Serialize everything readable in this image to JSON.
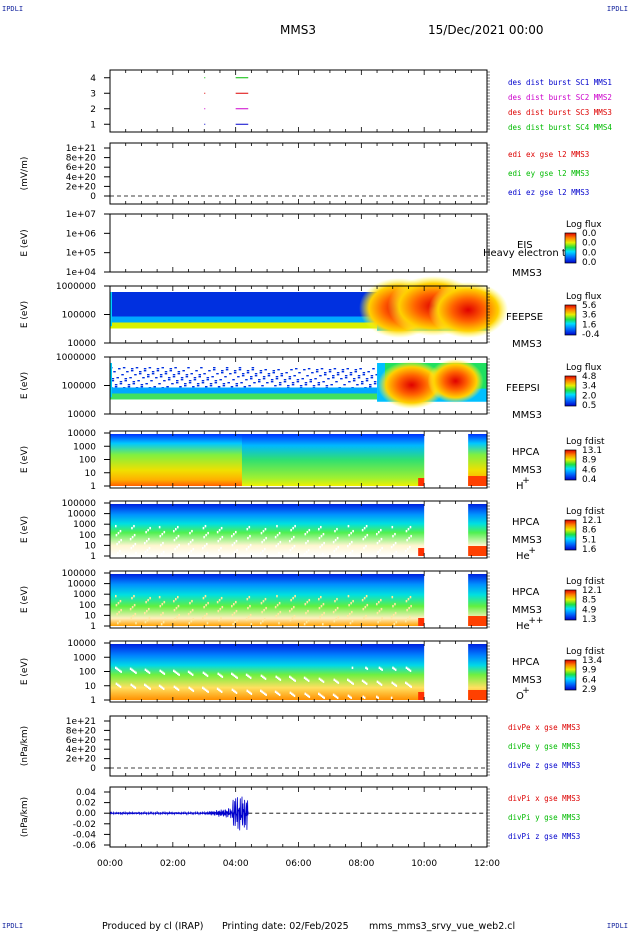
{
  "corner_label": "IPDLI",
  "header": {
    "spacecraft": "MMS3",
    "datetime": "15/Dec/2021 00:00"
  },
  "footer": {
    "produced": "Produced by cl (IRAP)",
    "printing": "Printing date: 02/Feb/2025",
    "file": "mms_mms3_srvy_vue_web2.cl"
  },
  "colors": {
    "blue": "#0000cc",
    "red": "#dd0000",
    "green": "#00bb00",
    "magenta": "#cc00cc"
  },
  "chart_data": [
    {
      "type": "line",
      "id": "burst",
      "title": "",
      "ylabel": "",
      "yticks": [
        "1",
        "2",
        "3",
        "4"
      ],
      "ylim": [
        0.5,
        4.5
      ],
      "series": [
        {
          "name": "des dist burst SC1 MMS1",
          "color": "#0000cc"
        },
        {
          "name": "des dist burst SC2 MMS2",
          "color": "#cc00cc"
        },
        {
          "name": "des dist burst SC3 MMS3",
          "color": "#dd0000"
        },
        {
          "name": "des dist burst SC4 MMS4",
          "color": "#00bb00"
        }
      ]
    },
    {
      "type": "line",
      "id": "edi",
      "ylabel": "(mV/m)",
      "yticks": [
        "0",
        "2e+20",
        "4e+20",
        "6e+20",
        "8e+20",
        "1e+21"
      ],
      "ylim": [
        0,
        1e+21
      ],
      "series": [
        {
          "name": "edi ex gse l2 MMS3",
          "color": "#dd0000"
        },
        {
          "name": "edi ey gse l2 MMS3",
          "color": "#00bb00"
        },
        {
          "name": "edi ez gse l2 MMS3",
          "color": "#0000cc"
        }
      ]
    },
    {
      "type": "heatmap",
      "id": "eis",
      "ylabel": "E (eV)",
      "yticks": [
        "1e+04",
        "1e+05",
        "1e+06",
        "1e+07"
      ],
      "labels": [
        "EIS",
        "MMS3"
      ],
      "overlay": "Heavy electron to",
      "colorbar": {
        "title": "Log flux",
        "ticks": [
          "0.0",
          "0.0",
          "0.0",
          "0.0"
        ]
      }
    },
    {
      "type": "heatmap",
      "id": "feepse",
      "ylabel": "E (eV)",
      "yticks": [
        "10000",
        "100000",
        "1000000"
      ],
      "labels": [
        "FEEPSE",
        "MMS3"
      ],
      "colorbar": {
        "title": "Log flux",
        "ticks": [
          "5.6",
          "3.6",
          "1.6",
          "-0.4"
        ]
      }
    },
    {
      "type": "heatmap",
      "id": "feepsi",
      "ylabel": "E (eV)",
      "yticks": [
        "10000",
        "100000",
        "1000000"
      ],
      "labels": [
        "FEEPSI",
        "MMS3"
      ],
      "colorbar": {
        "title": "Log flux",
        "ticks": [
          "4.8",
          "3.4",
          "2.0",
          "0.5"
        ]
      }
    },
    {
      "type": "heatmap",
      "id": "hpca_h",
      "ylabel": "E (eV)",
      "yticks": [
        "1",
        "10",
        "100",
        "1000",
        "10000"
      ],
      "labels": [
        "HPCA",
        "MMS3"
      ],
      "species": "H",
      "charge": "+",
      "colorbar": {
        "title": "Log fdist",
        "ticks": [
          "13.1",
          "8.9",
          "4.6",
          "0.4"
        ]
      }
    },
    {
      "type": "heatmap",
      "id": "hpca_he",
      "ylabel": "E (eV)",
      "yticks": [
        "1",
        "10",
        "100",
        "1000",
        "10000",
        "100000"
      ],
      "labels": [
        "HPCA",
        "MMS3"
      ],
      "species": "He",
      "charge": "+",
      "colorbar": {
        "title": "Log fdist",
        "ticks": [
          "12.1",
          "8.6",
          "5.1",
          "1.6"
        ]
      }
    },
    {
      "type": "heatmap",
      "id": "hpca_he2",
      "ylabel": "E (eV)",
      "yticks": [
        "1",
        "10",
        "100",
        "1000",
        "10000",
        "100000"
      ],
      "labels": [
        "HPCA",
        "MMS3"
      ],
      "species": "He",
      "charge": "++",
      "colorbar": {
        "title": "Log fdist",
        "ticks": [
          "12.1",
          "8.5",
          "4.9",
          "1.3"
        ]
      }
    },
    {
      "type": "heatmap",
      "id": "hpca_o",
      "ylabel": "E (eV)",
      "yticks": [
        "1",
        "10",
        "100",
        "1000",
        "10000"
      ],
      "labels": [
        "HPCA",
        "MMS3"
      ],
      "species": "O",
      "charge": "+",
      "colorbar": {
        "title": "Log fdist",
        "ticks": [
          "13.4",
          "9.9",
          "6.4",
          "2.9"
        ]
      }
    },
    {
      "type": "line",
      "id": "divpe",
      "ylabel": "(nPa/km)",
      "yticks": [
        "0",
        "2e+20",
        "4e+20",
        "6e+20",
        "8e+20",
        "1e+21"
      ],
      "ylim": [
        0,
        1e+21
      ],
      "series": [
        {
          "name": "divPe x gse MMS3",
          "color": "#dd0000"
        },
        {
          "name": "divPe y gse MMS3",
          "color": "#00bb00"
        },
        {
          "name": "divPe z gse MMS3",
          "color": "#0000cc"
        }
      ]
    },
    {
      "type": "line",
      "id": "divpi",
      "ylabel": "(nPa/km)",
      "yticks": [
        "-0.06",
        "-0.04",
        "-0.02",
        "0.00",
        "0.02",
        "0.04"
      ],
      "ylim": [
        -0.06,
        0.04
      ],
      "series": [
        {
          "name": "divPi x gse MMS3",
          "color": "#dd0000"
        },
        {
          "name": "divPi y gse MMS3",
          "color": "#00bb00"
        },
        {
          "name": "divPi z gse MMS3",
          "color": "#0000cc"
        }
      ]
    }
  ],
  "xaxis": {
    "ticks": [
      "00:00",
      "02:00",
      "04:00",
      "06:00",
      "08:00",
      "10:00",
      "12:00"
    ],
    "xlim": [
      0,
      12
    ]
  }
}
